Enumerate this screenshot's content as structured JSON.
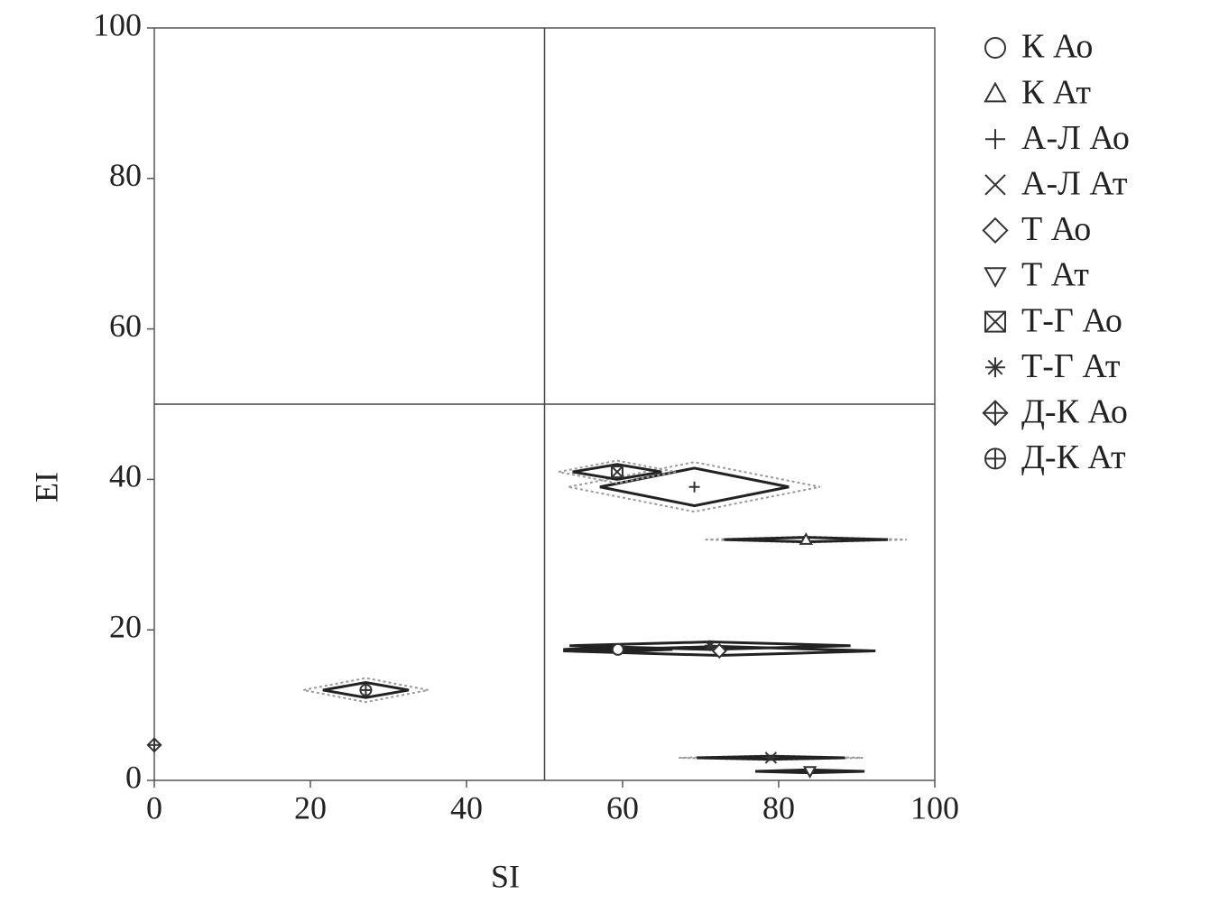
{
  "chart_data": {
    "type": "scatter",
    "x_label": "SI",
    "y_label": "EI",
    "xlim": [
      0,
      100
    ],
    "ylim": [
      0,
      100
    ],
    "xticks": [
      0,
      20,
      40,
      60,
      80,
      100
    ],
    "yticks": [
      0,
      20,
      40,
      60,
      80,
      100
    ],
    "reference_lines": {
      "x": 50,
      "y": 50
    },
    "legend": "outside-right",
    "color": "#333333",
    "series": [
      {
        "name": "К Ао",
        "marker": "circle",
        "x": [
          59.4
        ],
        "values": [
          17.4
        ],
        "xerr": [
          7
        ],
        "yerr": [
          0.3
        ]
      },
      {
        "name": "К Ат",
        "marker": "triangle-up",
        "x": [
          83.5
        ],
        "values": [
          32.0
        ],
        "xerr": [
          10.5
        ],
        "yerr": [
          0.3
        ],
        "xerr_outer": [
          12.9
        ],
        "yerr_outer": [
          0.4
        ]
      },
      {
        "name": "А-Л Ао",
        "marker": "plus",
        "x": [
          69.2
        ],
        "values": [
          39.0
        ],
        "xerr": [
          12.1
        ],
        "yerr": [
          2.5
        ],
        "xerr_outer": [
          16.1
        ],
        "yerr_outer": [
          3.3
        ]
      },
      {
        "name": "А-Л Ат",
        "marker": "x",
        "x": [
          79.0
        ],
        "values": [
          3.0
        ],
        "xerr": [
          9.5
        ],
        "yerr": [
          0.2
        ],
        "xerr_outer": [
          11.8
        ],
        "yerr_outer": [
          0.3
        ]
      },
      {
        "name": "Т Ао",
        "marker": "diamond",
        "x": [
          72.4
        ],
        "values": [
          17.2
        ],
        "xerr": [
          20
        ],
        "yerr": [
          0.6
        ]
      },
      {
        "name": "Т Ат",
        "marker": "triangle-down",
        "x": [
          84.0
        ],
        "values": [
          1.2
        ],
        "xerr": [
          7
        ],
        "yerr": [
          0.2
        ]
      },
      {
        "name": "Т-Г Ао",
        "marker": "square-x",
        "x": [
          59.3
        ],
        "values": [
          41.0
        ],
        "xerr": [
          5.7
        ],
        "yerr": [
          1.0
        ],
        "xerr_outer": [
          7.5
        ],
        "yerr_outer": [
          1.5
        ]
      },
      {
        "name": "Т-Г Ат",
        "marker": "asterisk",
        "x": [
          71.2
        ],
        "values": [
          17.9
        ],
        "xerr": [
          18
        ],
        "yerr": [
          0.5
        ]
      },
      {
        "name": "Д-К Ао",
        "marker": "diamond-plus",
        "x": [
          0
        ],
        "values": [
          4.7
        ]
      },
      {
        "name": "Д-К Ат",
        "marker": "circle-plus",
        "x": [
          27.1
        ],
        "values": [
          12.0
        ],
        "xerr": [
          5.5
        ],
        "yerr": [
          1.0
        ],
        "xerr_outer": [
          8.0
        ],
        "yerr_outer": [
          1.6
        ]
      }
    ]
  }
}
